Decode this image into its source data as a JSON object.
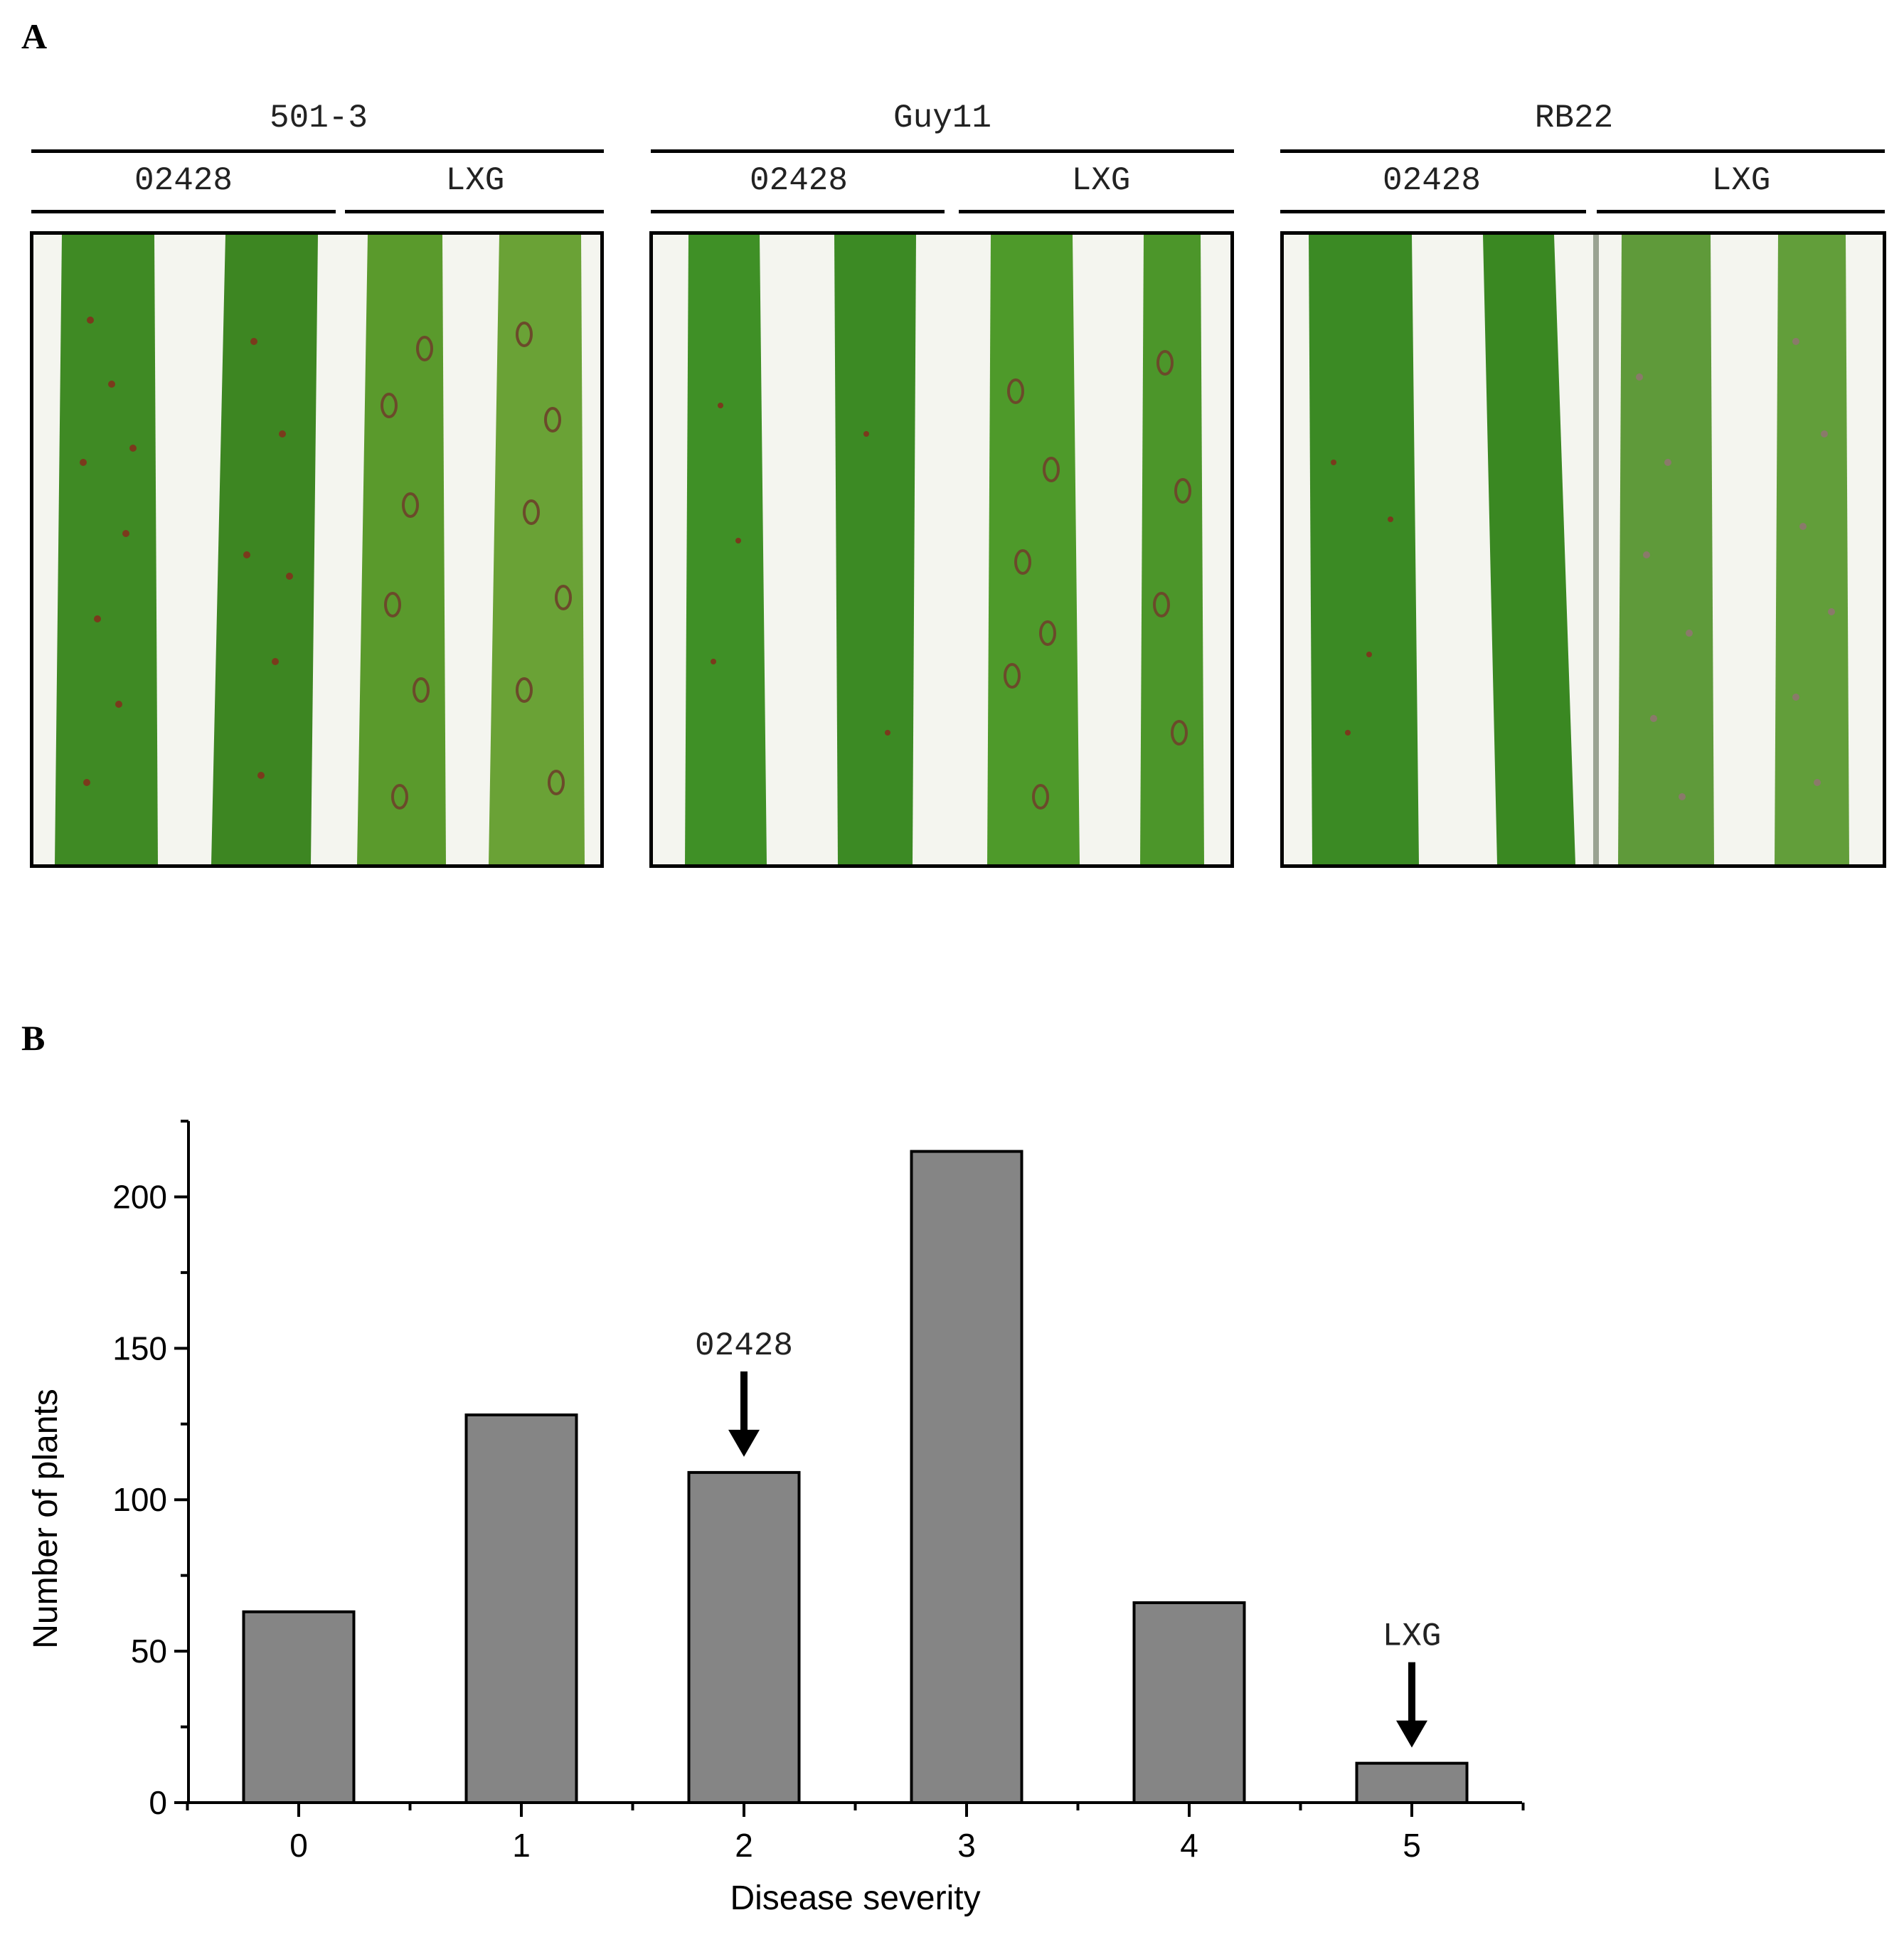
{
  "panel_a": {
    "letter": "A",
    "groups": [
      {
        "strain": "501-3",
        "cultivars": [
          "02428",
          "LXG"
        ]
      },
      {
        "strain": "Guy11",
        "cultivars": [
          "02428",
          "LXG"
        ]
      },
      {
        "strain": "RB22",
        "cultivars": [
          "02428",
          "LXG"
        ]
      }
    ]
  },
  "panel_b": {
    "letter": "B"
  },
  "colors": {
    "bar": "#858585",
    "leaf": "#3f8a24",
    "background_photo": "#f4f5ef"
  },
  "chart_data": {
    "type": "bar",
    "categories": [
      "0",
      "1",
      "2",
      "3",
      "4",
      "5"
    ],
    "values": [
      63,
      128,
      109,
      215,
      66,
      13
    ],
    "xlabel": "Disease severity",
    "ylabel": "Number of plants",
    "ylim": [
      0,
      225
    ],
    "yticks": [
      "0",
      "50",
      "100",
      "150",
      "200"
    ],
    "ytick_values": [
      0,
      50,
      100,
      150,
      200
    ],
    "annotations": [
      {
        "text": "02428",
        "category": "2"
      },
      {
        "text": "LXG",
        "category": "5"
      }
    ],
    "grid": false
  }
}
